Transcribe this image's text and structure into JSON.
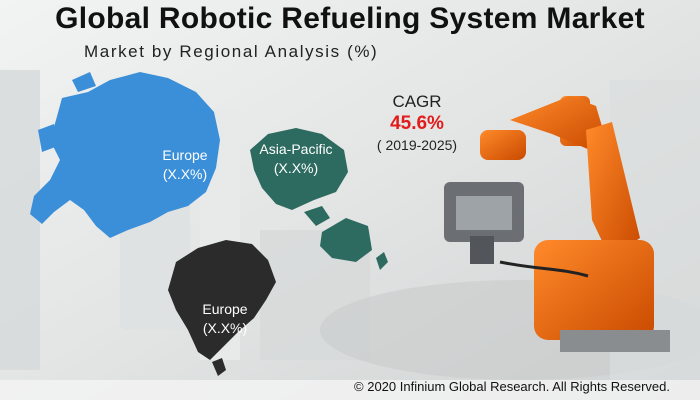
{
  "header": {
    "title": "Global Robotic Refueling System Market",
    "subtitle": "Market by Regional Analysis (%)"
  },
  "cagr": {
    "label": "CAGR",
    "value": "45.6%",
    "period": "( 2019-2025)"
  },
  "regions": [
    {
      "name": "Europe",
      "share": "(X.X%)",
      "color": "#3b8fd9"
    },
    {
      "name": "Asia-Pacific",
      "share": "(X.X%)",
      "color": "#2d6b60"
    },
    {
      "name": "Europe",
      "share": "(X.X%)",
      "color": "#2b2b2b"
    }
  ],
  "footer": {
    "copyright": "© 2020 Infinium Global Research. All Rights Reserved."
  }
}
